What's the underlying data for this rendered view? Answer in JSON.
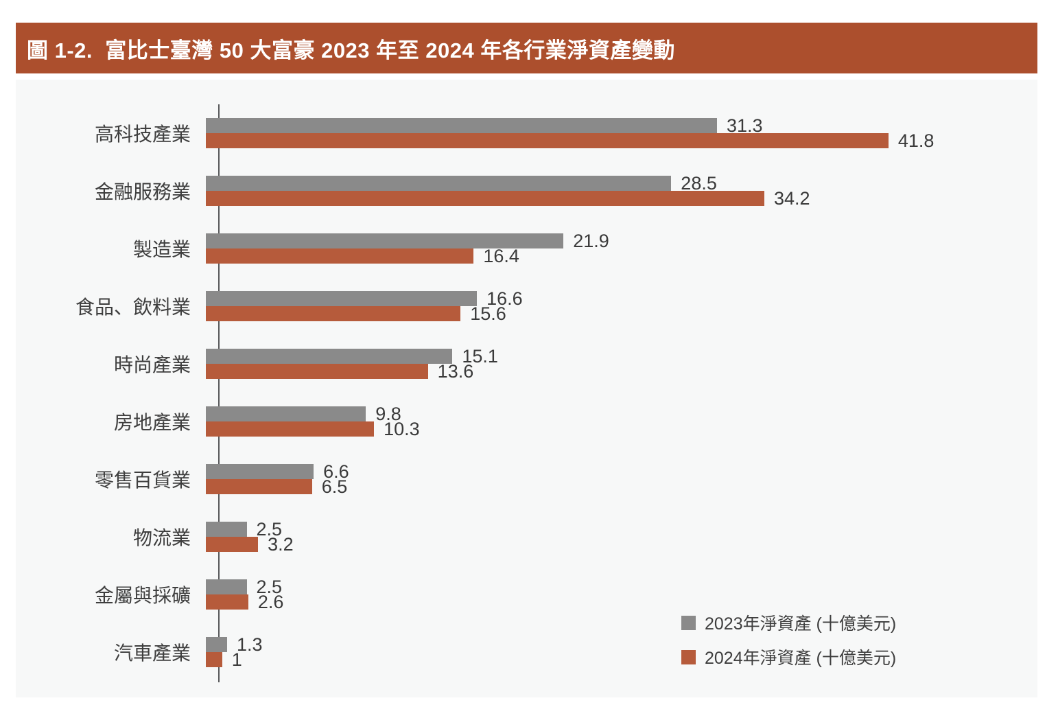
{
  "title": "圖 1-2.  富比士臺灣 50 大富豪 2023 年至 2024 年各行業淨資產變動",
  "colors": {
    "banner_bg": "#AC4F2D",
    "banner_text": "#FFFFFF",
    "panel_bg": "#F7F8F8",
    "bar_2023": "#8A8A8A",
    "bar_2024": "#B65B3B",
    "axis_line": "#58595B",
    "label_text": "#3E3E3E"
  },
  "chart_data": {
    "type": "bar",
    "orientation": "horizontal",
    "title": "圖 1-2. 富比士臺灣 50 大富豪 2023 年至 2024 年各行業淨資產變動",
    "categories": [
      "高科技產業",
      "金融服務業",
      "製造業",
      "食品、飲料業",
      "時尚產業",
      "房地產業",
      "零售百貨業",
      "物流業",
      "金屬與採礦",
      "汽車產業"
    ],
    "series": [
      {
        "name": "2023年淨資產 (十億美元)",
        "color": "#8A8A8A",
        "values": [
          31.3,
          28.5,
          21.9,
          16.6,
          15.1,
          9.8,
          6.6,
          2.5,
          2.5,
          1.3
        ]
      },
      {
        "name": "2024年淨資產 (十億美元)",
        "color": "#B65B3B",
        "values": [
          41.8,
          34.2,
          16.4,
          15.6,
          13.6,
          10.3,
          6.5,
          3.2,
          2.6,
          1
        ]
      }
    ],
    "xlim": [
      0,
      50
    ],
    "grid": false,
    "value_labels_shown": true,
    "legend_position": "bottom-right"
  }
}
